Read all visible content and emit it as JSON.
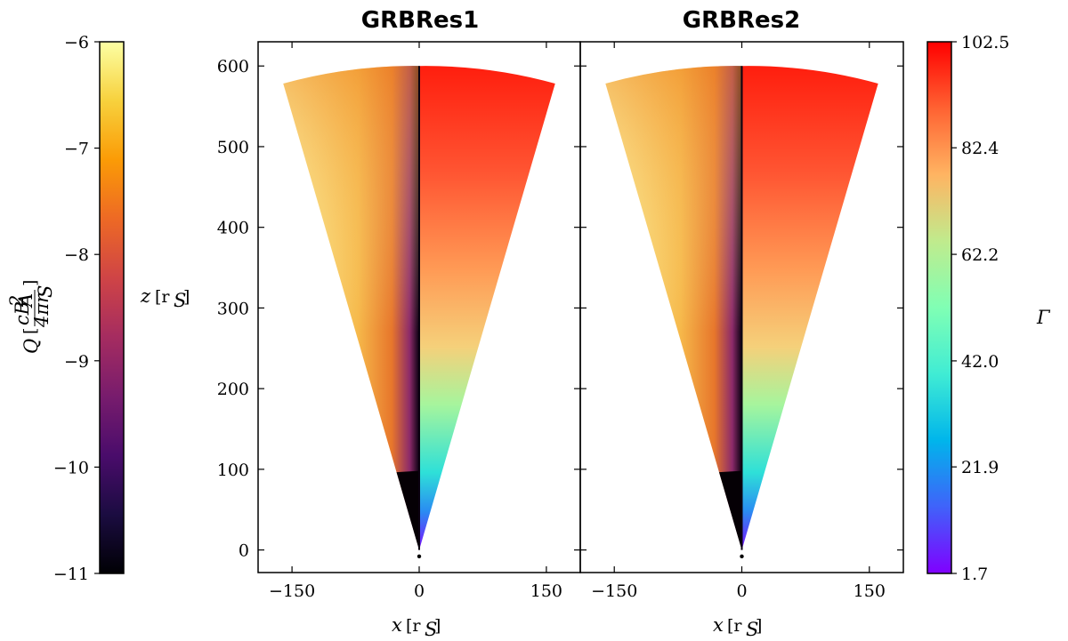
{
  "chart_data": {
    "type": "heatmap",
    "description_kind": "wedge-shaped 2D field maps of two simulations",
    "panels": [
      {
        "title": "GRBRes1"
      },
      {
        "title": "GRBRes2"
      }
    ],
    "x_axis": {
      "label": "x [r_S]",
      "label_sym": "x",
      "label_unit": "[r",
      "label_sub": "S",
      "label_close": "]",
      "range": [
        -190,
        190
      ],
      "ticks": [
        -150,
        0,
        150
      ],
      "tick_labels": [
        "−150",
        "0",
        "150"
      ]
    },
    "y_axis": {
      "label": "z [r_S]",
      "label_sym": "z",
      "label_unit": "[r",
      "label_sub": "S",
      "label_close": "]",
      "range": [
        -28,
        630
      ],
      "ticks": [
        0,
        100,
        200,
        300,
        400,
        500,
        600
      ],
      "tick_labels": [
        "0",
        "100",
        "200",
        "300",
        "400",
        "500",
        "600"
      ]
    },
    "wedge": {
      "radius_max": 600,
      "radius_inner": 100,
      "half_opening_angle_deg": 15.5
    },
    "left_half_field": {
      "name": "Q",
      "colormap": "inferno"
    },
    "right_half_field": {
      "name": "Γ",
      "colormap": "rainbow"
    },
    "colorbar_left": {
      "label": "Q [cB_A^2 / 4π r_S]",
      "label_sym": "Q",
      "range": [
        -11,
        -6
      ],
      "ticks": [
        -11,
        -10,
        -9,
        -8,
        -7,
        -6
      ],
      "tick_labels": [
        "−11",
        "−10",
        "−9",
        "−8",
        "−7",
        "−6"
      ],
      "colormap": "inferno",
      "stops": [
        "#000004",
        "#1b0c41",
        "#4a0c6b",
        "#781c6d",
        "#a52c60",
        "#cf4446",
        "#ed6925",
        "#fb9b06",
        "#f7d13d",
        "#fcffa4"
      ]
    },
    "colorbar_right": {
      "label": "Γ",
      "range": [
        1.7,
        102.5
      ],
      "ticks": [
        1.7,
        21.9,
        42.0,
        62.2,
        82.4,
        102.5
      ],
      "tick_labels": [
        "1.7",
        "21.9",
        "42.0",
        "62.2",
        "82.4",
        "102.5"
      ],
      "colormap": "rainbow",
      "stops": [
        "#8000ff",
        "#4062fa",
        "#00b5eb",
        "#40ecd4",
        "#80ffb4",
        "#c0eb8d",
        "#ffb462",
        "#ff6232",
        "#ff0000"
      ]
    }
  }
}
